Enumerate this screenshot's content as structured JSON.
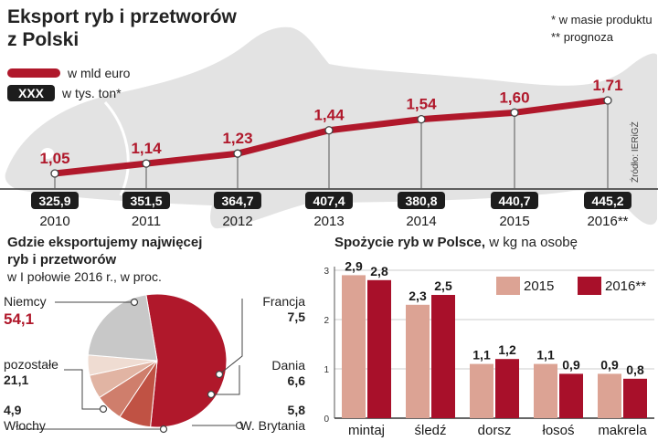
{
  "header": {
    "title_line1": "Eksport ryb  i przetworów",
    "title_line2": "z Polski",
    "note1": "* w masie produktu",
    "note2": "** prognoza",
    "legend_line": "w mld euro",
    "legend_box": "XXX",
    "legend_box_text": "w tys. ton*",
    "source": "Źródło: IERiGŻ"
  },
  "pie_section": {
    "title_line1": "Gdzie eksportujemy najwięcej",
    "title_line2": "ryb i przetworów",
    "subtitle": "w I połowie 2016 r., w proc."
  },
  "bar_section": {
    "title_bold": "Spożycie ryb w Polsce,",
    "title_rest": " w kg na osobę"
  },
  "colors": {
    "accent": "#b0182b",
    "bar2015": "#dca394",
    "dark_box": "#1d1d1d",
    "fish": "#e3e3e3",
    "grid": "#cccccc"
  },
  "chart_data": [
    {
      "type": "line",
      "x": [
        "2010",
        "2011",
        "2012",
        "2013",
        "2014",
        "2015",
        "2016**"
      ],
      "series": [
        {
          "name": "w mld euro",
          "values": [
            1.05,
            1.14,
            1.23,
            1.44,
            1.54,
            1.6,
            1.71
          ],
          "labels": [
            "1,05",
            "1,14",
            "1,23",
            "1,44",
            "1,54",
            "1,60",
            "1,71"
          ]
        }
      ],
      "tons": [
        "325,9",
        "351,5",
        "364,7",
        "407,4",
        "380,8",
        "440,7",
        "445,2"
      ],
      "tons_unit": "w tys. ton*"
    },
    {
      "type": "pie",
      "slices": [
        {
          "label": "Niemcy",
          "value": 54.1,
          "value_label": "54,1",
          "color": "#b0182b"
        },
        {
          "label": "Francja",
          "value": 7.5,
          "value_label": "7,5",
          "color": "#c05244"
        },
        {
          "label": "Dania",
          "value": 6.6,
          "value_label": "6,6",
          "color": "#cf7e6c"
        },
        {
          "label": "W. Brytania",
          "value": 5.8,
          "value_label": "5,8",
          "color": "#e1b4a3"
        },
        {
          "label": "Włochy",
          "value": 4.9,
          "value_label": "4,9",
          "color": "#efdcd2"
        },
        {
          "label": "pozostałe",
          "value": 21.1,
          "value_label": "21,1",
          "color": "#c8c8c8"
        }
      ]
    },
    {
      "type": "bar",
      "categories": [
        "mintaj",
        "śledź",
        "dorsz",
        "łosoś",
        "makrela"
      ],
      "series": [
        {
          "name": "2015",
          "values": [
            2.9,
            2.3,
            1.1,
            1.1,
            0.9
          ],
          "labels": [
            "2,9",
            "2,3",
            "1,1",
            "1,1",
            "0,9"
          ],
          "color": "#dca394"
        },
        {
          "name": "2016**",
          "values": [
            2.8,
            2.5,
            1.2,
            0.9,
            0.8
          ],
          "labels": [
            "2,8",
            "2,5",
            "1,2",
            "0,9",
            "0,8"
          ],
          "color": "#a8102a"
        }
      ],
      "ylim": [
        0,
        3
      ],
      "yticks": [
        "0",
        "1",
        "2",
        "3"
      ]
    }
  ]
}
